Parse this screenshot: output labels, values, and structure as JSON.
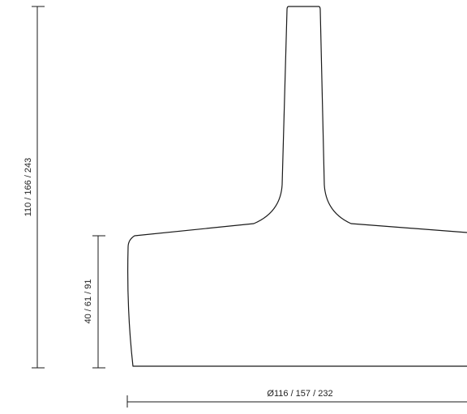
{
  "dimensions": {
    "total_height": "110 / 166 / 243",
    "shade_height": "40 / 61 / 91",
    "diameter": "Ø116 / 157 / 232"
  },
  "colors": {
    "line": "#1a1a1a",
    "background": "#ffffff"
  }
}
